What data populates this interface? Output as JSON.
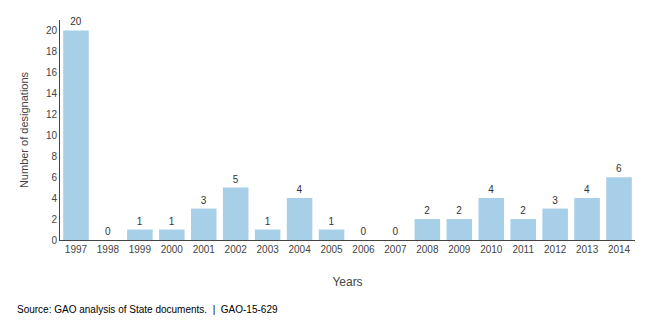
{
  "chart_data": {
    "type": "bar",
    "x_label": "Years",
    "y_label": "Number of designations",
    "annotations": [
      "Source: GAO analysis of State documents.  |  GAO-15-629"
    ],
    "categories": [
      "1997",
      "1998",
      "1999",
      "2000",
      "2001",
      "2002",
      "2003",
      "2004",
      "2005",
      "2006",
      "2007",
      "2008",
      "2009",
      "2010",
      "2011",
      "2012",
      "2013",
      "2014"
    ],
    "values": [
      20,
      0,
      1,
      1,
      3,
      5,
      1,
      4,
      1,
      0,
      0,
      2,
      2,
      4,
      2,
      3,
      4,
      6
    ],
    "color": "#a8cfe8",
    "ylim": [
      0,
      21
    ],
    "yticks": [
      0,
      2,
      4,
      6,
      8,
      10,
      12,
      14,
      16,
      18,
      20
    ],
    "grid": false,
    "data_labels": true
  }
}
